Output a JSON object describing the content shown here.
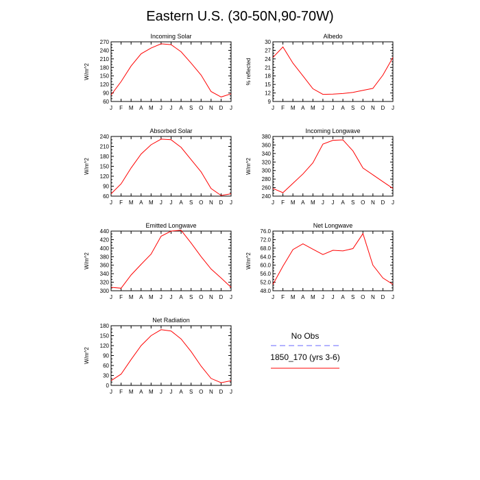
{
  "title": "Eastern U.S. (30-50N,90-70W)",
  "colors": {
    "model": "#ff0000",
    "obs": "#6666ff",
    "axis": "#000000"
  },
  "legend": {
    "entries": [
      {
        "label": "No Obs",
        "color": "#6666ff",
        "style": "dashed"
      },
      {
        "label": "1850_170 (yrs 3-6)",
        "color": "#ff0000",
        "style": "solid"
      }
    ]
  },
  "chart_data": [
    {
      "type": "line",
      "title": "Incoming Solar",
      "ylabel": "W/m^2",
      "xlabel": "",
      "ylim": [
        60,
        270
      ],
      "yticks": [
        "60",
        "90",
        "120",
        "150",
        "180",
        "210",
        "240",
        "270"
      ],
      "categories": [
        "J",
        "F",
        "M",
        "A",
        "M",
        "J",
        "J",
        "A",
        "S",
        "O",
        "N",
        "D",
        "J"
      ],
      "series": [
        {
          "name": "1850_170 (yrs 3-6)",
          "values": [
            83,
            130,
            185,
            228,
            248,
            263,
            260,
            235,
            195,
            153,
            95,
            76,
            87
          ]
        }
      ]
    },
    {
      "type": "line",
      "title": "Albedo",
      "ylabel": "% reflected",
      "xlabel": "",
      "ylim": [
        9,
        30
      ],
      "yticks": [
        "9",
        "12",
        "15",
        "18",
        "21",
        "24",
        "27",
        "30"
      ],
      "categories": [
        "J",
        "F",
        "M",
        "A",
        "M",
        "J",
        "J",
        "A",
        "S",
        "O",
        "N",
        "D",
        "J"
      ],
      "series": [
        {
          "name": "1850_170 (yrs 3-6)",
          "values": [
            24.5,
            28.2,
            22.5,
            18,
            13.5,
            11.5,
            11.6,
            11.8,
            12.2,
            12.9,
            13.6,
            18.3,
            24.5
          ]
        }
      ]
    },
    {
      "type": "line",
      "title": "Absorbed Solar",
      "ylabel": "W/m^2",
      "xlabel": "",
      "ylim": [
        60,
        240
      ],
      "yticks": [
        "60",
        "90",
        "120",
        "150",
        "180",
        "210",
        "240"
      ],
      "categories": [
        "J",
        "F",
        "M",
        "A",
        "M",
        "J",
        "J",
        "A",
        "S",
        "O",
        "N",
        "D",
        "J"
      ],
      "series": [
        {
          "name": "1850_170 (yrs 3-6)",
          "values": [
            67,
            97,
            145,
            187,
            215,
            232,
            230,
            207,
            170,
            133,
            83,
            62,
            67
          ]
        }
      ]
    },
    {
      "type": "line",
      "title": "Incoming Longwave",
      "ylabel": "W/m^2",
      "xlabel": "",
      "ylim": [
        240,
        380
      ],
      "yticks": [
        "240",
        "260",
        "280",
        "300",
        "320",
        "340",
        "360",
        "380"
      ],
      "categories": [
        "J",
        "F",
        "M",
        "A",
        "M",
        "J",
        "J",
        "A",
        "S",
        "O",
        "N",
        "D",
        "J"
      ],
      "series": [
        {
          "name": "1850_170 (yrs 3-6)",
          "values": [
            258,
            248,
            270,
            292,
            318,
            362,
            371,
            372,
            346,
            306,
            290,
            274,
            258
          ]
        }
      ]
    },
    {
      "type": "line",
      "title": "Emitted Longwave",
      "ylabel": "W/m^2",
      "xlabel": "",
      "ylim": [
        300,
        440
      ],
      "yticks": [
        "300",
        "320",
        "340",
        "360",
        "380",
        "400",
        "420",
        "440"
      ],
      "categories": [
        "J",
        "F",
        "M",
        "A",
        "M",
        "J",
        "J",
        "A",
        "S",
        "O",
        "N",
        "D",
        "J"
      ],
      "series": [
        {
          "name": "1850_170 (yrs 3-6)",
          "values": [
            308,
            306,
            337,
            362,
            386,
            428,
            440,
            442,
            412,
            380,
            351,
            330,
            308
          ]
        }
      ]
    },
    {
      "type": "line",
      "title": "Net Longwave",
      "ylabel": "W/m^2",
      "xlabel": "",
      "ylim": [
        48,
        76
      ],
      "yticks": [
        "48.0",
        "52.0",
        "56.0",
        "60.0",
        "64.0",
        "68.0",
        "72.0",
        "76.0"
      ],
      "categories": [
        "J",
        "F",
        "M",
        "A",
        "M",
        "J",
        "J",
        "A",
        "S",
        "O",
        "N",
        "D",
        "J"
      ],
      "series": [
        {
          "name": "1850_170 (yrs 3-6)",
          "values": [
            51,
            59.5,
            67.3,
            70,
            67.5,
            65,
            67,
            66.7,
            67.8,
            74.8,
            60,
            54,
            51
          ]
        }
      ]
    },
    {
      "type": "line",
      "title": "Net Radiation",
      "ylabel": "W/m^2",
      "xlabel": "",
      "ylim": [
        0,
        180
      ],
      "yticks": [
        "0",
        "30",
        "60",
        "90",
        "120",
        "150",
        "180"
      ],
      "categories": [
        "J",
        "F",
        "M",
        "A",
        "M",
        "J",
        "J",
        "A",
        "S",
        "O",
        "N",
        "D",
        "J"
      ],
      "series": [
        {
          "name": "1850_170 (yrs 3-6)",
          "values": [
            14,
            34,
            78,
            120,
            150,
            168,
            164,
            140,
            102,
            58,
            21,
            8,
            14
          ]
        }
      ]
    }
  ]
}
